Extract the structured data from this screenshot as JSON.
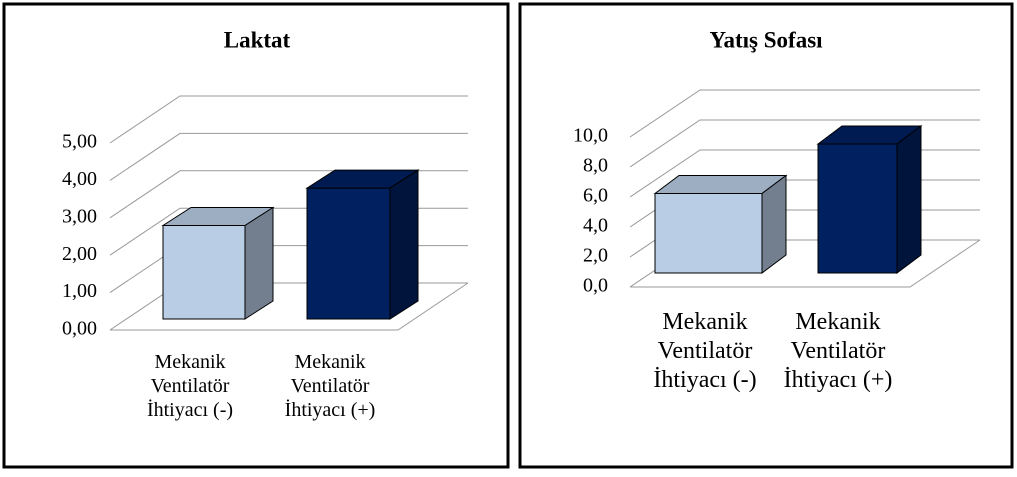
{
  "chart_data": [
    {
      "type": "bar3d",
      "title": "Laktat",
      "categories": [
        "Mekanik Ventilatör İhtiyacı (-)",
        "Mekanik Ventilatör İhtiyacı (+)"
      ],
      "values": [
        2.5,
        3.5
      ],
      "colors": [
        "#b9cde5",
        "#002060"
      ],
      "ylim": [
        0,
        5
      ],
      "yticks": [
        {
          "value": 0,
          "label": "0,00"
        },
        {
          "value": 1,
          "label": "1,00"
        },
        {
          "value": 2,
          "label": "2,00"
        },
        {
          "value": 3,
          "label": "3,00"
        },
        {
          "value": 4,
          "label": "4,00"
        },
        {
          "value": 5,
          "label": "5,00"
        }
      ],
      "grid": true
    },
    {
      "type": "bar3d",
      "title": "Yatış Sofası",
      "categories": [
        "Mekanik Ventilatör İhtiyacı (-)",
        "Mekanik Ventilatör İhtiyacı (+)"
      ],
      "values": [
        5.3,
        8.6
      ],
      "colors": [
        "#b9cde5",
        "#002060"
      ],
      "ylim": [
        0,
        10
      ],
      "yticks": [
        {
          "value": 0,
          "label": "0,0"
        },
        {
          "value": 2,
          "label": "2,0"
        },
        {
          "value": 4,
          "label": "4,0"
        },
        {
          "value": 6,
          "label": "6,0"
        },
        {
          "value": 8,
          "label": "8,0"
        },
        {
          "value": 10,
          "label": "10,0"
        }
      ],
      "grid": true
    }
  ]
}
